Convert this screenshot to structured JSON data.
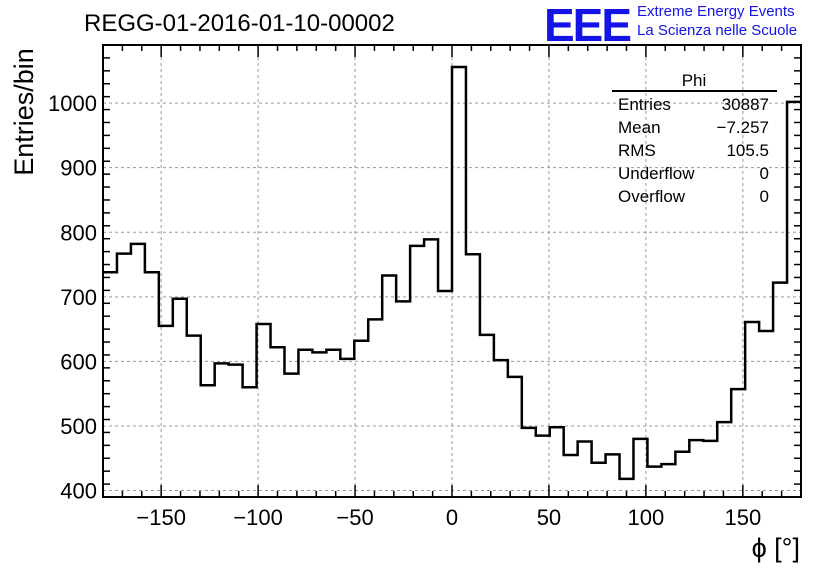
{
  "header": {
    "title": "REGG-01-2016-01-10-00002",
    "logo_text": "EEE",
    "logo_line1": "Extreme Energy Events",
    "logo_line2": "La Scienza nelle Scuole"
  },
  "colors": {
    "logo": "#1414e6",
    "histogram": "#000000",
    "grid": "#9a9a9a"
  },
  "stats_box": {
    "name": "Phi",
    "rows": [
      {
        "label": "Entries",
        "value": "30887"
      },
      {
        "label": "Mean",
        "value": "−7.257"
      },
      {
        "label": "RMS",
        "value": "105.5"
      },
      {
        "label": "Underflow",
        "value": "0"
      },
      {
        "label": "Overflow",
        "value": "0"
      }
    ]
  },
  "chart_data": {
    "type": "histogram",
    "title": "REGG-01-2016-01-10-00002",
    "xlabel": "ϕ [°]",
    "ylabel": "Entries/bin",
    "xlim": [
      -180,
      180
    ],
    "ylim": [
      390,
      1090
    ],
    "bin_width": 7.2,
    "bin_start": -180,
    "x_ticks": [
      -150,
      -100,
      -50,
      0,
      50,
      100,
      150
    ],
    "x_tick_labels": [
      "−150",
      "−100",
      "−50",
      "0",
      "50",
      "100",
      "150"
    ],
    "y_ticks": [
      400,
      500,
      600,
      700,
      800,
      900,
      1000
    ],
    "y_tick_labels": [
      "400",
      "500",
      "600",
      "700",
      "800",
      "900",
      "1000"
    ],
    "grid": true,
    "values": [
      738,
      767,
      782,
      738,
      655,
      697,
      640,
      563,
      597,
      595,
      560,
      658,
      622,
      581,
      618,
      614,
      618,
      604,
      632,
      665,
      733,
      693,
      779,
      789,
      709,
      1056,
      766,
      641,
      602,
      576,
      497,
      485,
      498,
      455,
      476,
      443,
      456,
      418,
      480,
      437,
      441,
      460,
      478,
      477,
      506,
      557,
      661,
      647,
      722,
      1002
    ]
  }
}
